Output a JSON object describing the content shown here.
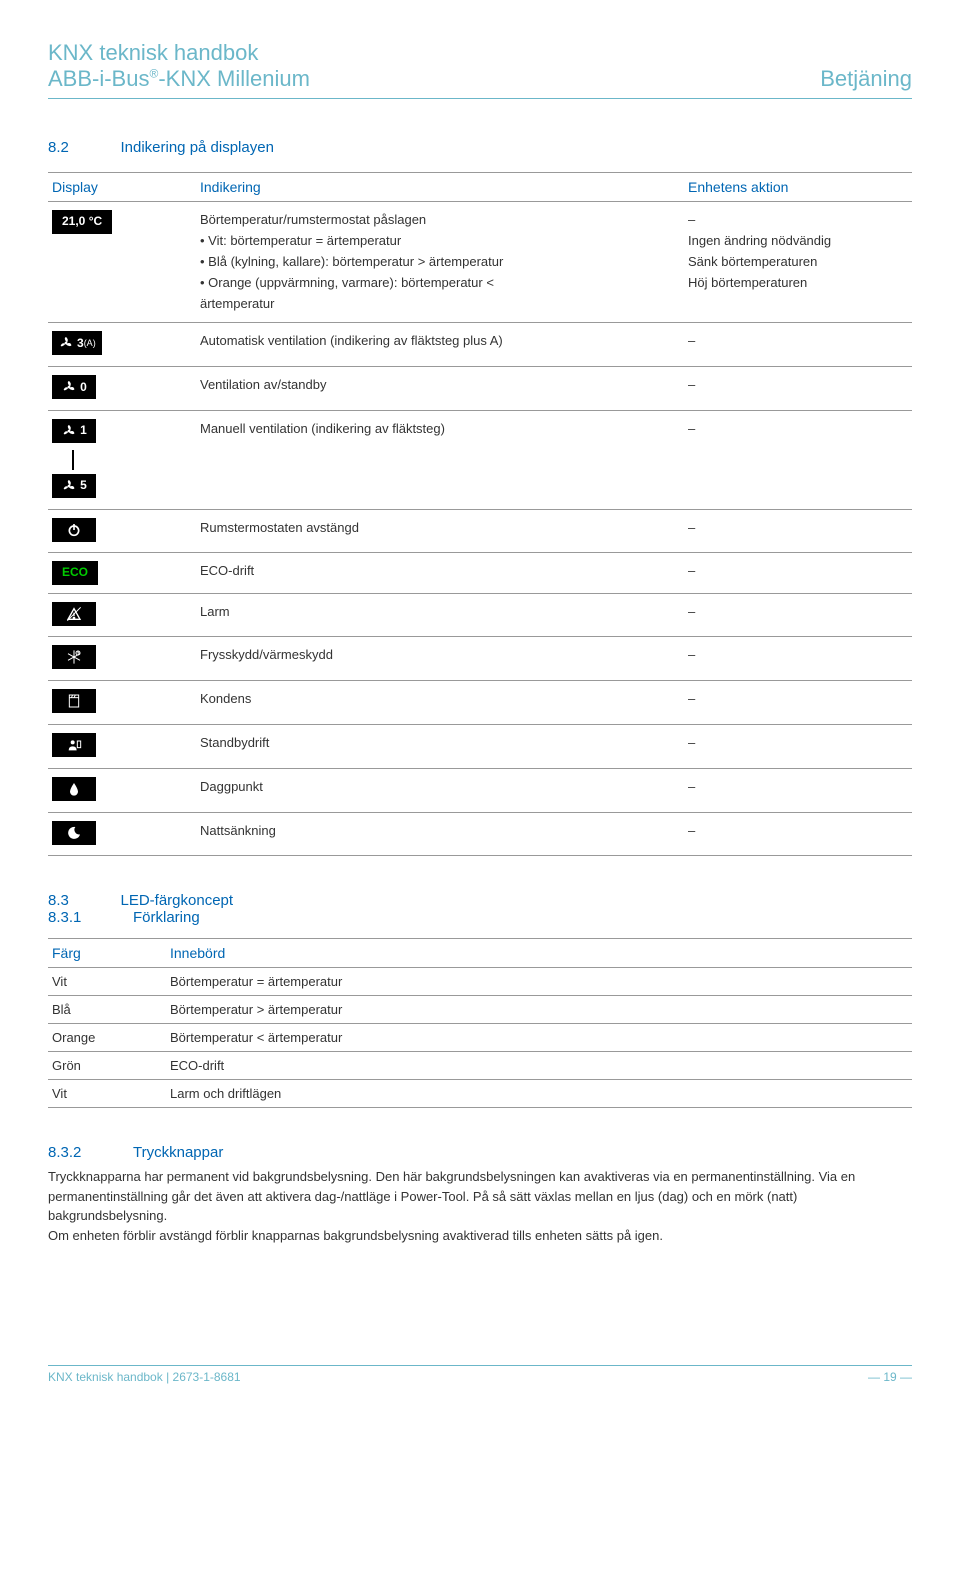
{
  "header": {
    "title_line1": "KNX teknisk handbok",
    "title_line2_a": "ABB-i-Bus",
    "title_line2_b": "-KNX Millenium",
    "right": "Betjäning"
  },
  "section82": {
    "num": "8.2",
    "title": "Indikering på displayen",
    "cols": {
      "c1": "Display",
      "c2": "Indikering",
      "c3": "Enhetens aktion"
    },
    "rows": [
      {
        "display_type": "text",
        "display_text": "21,0 °C",
        "ind": "Börtemperatur/rumstermostat påslagen\n• Vit: börtemperatur = ärtemperatur\n• Blå (kylning, kallare): börtemperatur > ärtemperatur\n• Orange (uppvärmning, varmare): börtemperatur <\n  ärtemperatur",
        "act": "–\nIngen ändring nödvändig\nSänk börtemperaturen\nHöj börtemperaturen"
      },
      {
        "display_type": "fan",
        "num": "3",
        "sup": "(A)",
        "ind": "Automatisk ventilation (indikering av fläktsteg plus A)",
        "act": "–"
      },
      {
        "display_type": "fan",
        "num": "0",
        "sup": "",
        "ind": "Ventilation av/standby",
        "act": "–"
      },
      {
        "display_type": "fan-range",
        "num_top": "1",
        "num_bottom": "5",
        "ind": "Manuell ventilation (indikering av fläktsteg)",
        "act": "–"
      },
      {
        "display_type": "power",
        "ind": "Rumstermostaten avstängd",
        "act": "–"
      },
      {
        "display_type": "eco",
        "eco_text": "ECO",
        "ind": "ECO-drift",
        "act": "–"
      },
      {
        "display_type": "alarm",
        "ind": "Larm",
        "act": "–"
      },
      {
        "display_type": "frost",
        "ind": "Frysskydd/värmeskydd",
        "act": "–"
      },
      {
        "display_type": "window",
        "ind": "Kondens",
        "act": "–"
      },
      {
        "display_type": "standby",
        "ind": "Standbydrift",
        "act": "–"
      },
      {
        "display_type": "drop",
        "ind": "Daggpunkt",
        "act": "–"
      },
      {
        "display_type": "moon",
        "ind": "Nattsänkning",
        "act": "–"
      }
    ]
  },
  "section83": {
    "num": "8.3",
    "title": "LED-färgkoncept",
    "num2": "8.3.1",
    "title2": "Förklaring",
    "cols": {
      "c1": "Färg",
      "c2": "Innebörd"
    },
    "rows": [
      {
        "c1": "Vit",
        "c2": "Börtemperatur = ärtemperatur"
      },
      {
        "c1": "Blå",
        "c2": "Börtemperatur > ärtemperatur"
      },
      {
        "c1": "Orange",
        "c2": "Börtemperatur < ärtemperatur"
      },
      {
        "c1": "Grön",
        "c2": "ECO-drift"
      },
      {
        "c1": "Vit",
        "c2": "Larm och driftlägen"
      }
    ]
  },
  "section832": {
    "num": "8.3.2",
    "title": "Tryckknappar",
    "body": "Tryckknapparna har permanent vid bakgrundsbelysning. Den här bakgrundsbelysningen kan avaktiveras via en permanentinställning. Via en permanentinställning går det även att aktivera dag-/nattläge i Power-Tool. På så sätt växlas mellan en ljus (dag) och en mörk (natt) bakgrundsbelysning.\nOm enheten förblir avstängd förblir knapparnas bakgrundsbelysning avaktiverad tills enheten sätts på igen."
  },
  "footer": {
    "left": "KNX teknisk handbok | 2673-1-8681",
    "right": "— 19 —"
  }
}
